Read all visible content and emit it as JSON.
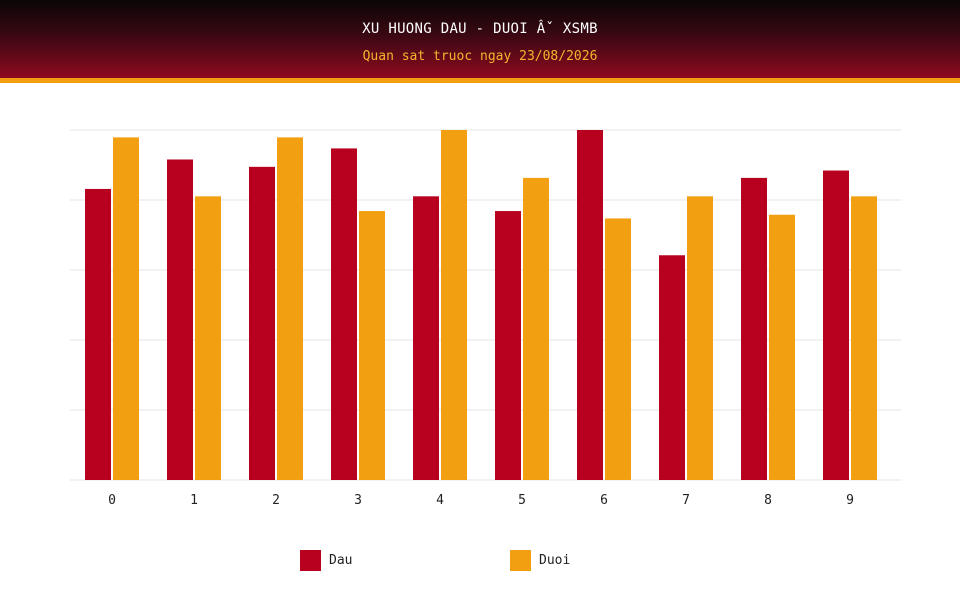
{
  "header": {
    "title": "XU HUONG DAU - DUOI Âˇ XSMB",
    "subtitle": "Quan sat truoc ngay 23/08/2026"
  },
  "colors": {
    "dau": "#b8001f",
    "duoi": "#f2a012",
    "header_dark": "#0b0607",
    "header_red": "#8e0a1f",
    "accent": "#f2a012",
    "grid": "#e6e6e6"
  },
  "legend": {
    "dau_label": "Dau",
    "duoi_label": "Duoi"
  },
  "chart_data": {
    "type": "bar",
    "title": "",
    "xlabel": "",
    "ylabel": "",
    "categories": [
      "0",
      "1",
      "2",
      "3",
      "4",
      "5",
      "6",
      "7",
      "8",
      "9"
    ],
    "series": [
      {
        "name": "Dau",
        "values": [
          39.5,
          43.5,
          42.5,
          45,
          38.5,
          36.5,
          47.5,
          30.5,
          41,
          42
        ]
      },
      {
        "name": "Duoi",
        "values": [
          46.5,
          38.5,
          46.5,
          36.5,
          47.5,
          41,
          35.5,
          38.5,
          36,
          38.5
        ]
      }
    ],
    "ylim": [
      0,
      47.5
    ],
    "grid": true,
    "y_tick_labels_shown": false,
    "legend_position": "bottom"
  }
}
